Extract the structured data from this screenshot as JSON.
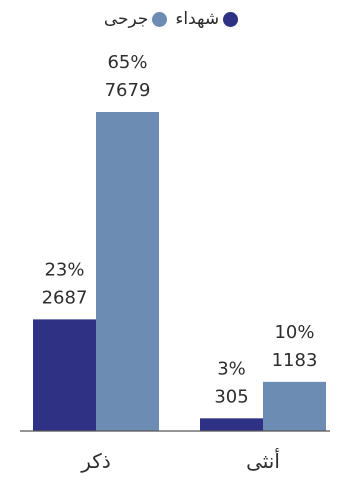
{
  "chart_data": {
    "type": "bar",
    "categories": [
      "ذكر",
      "أنثى"
    ],
    "series": [
      {
        "name": "شهداء",
        "values": [
          2687,
          305
        ],
        "percent_labels": [
          "23%",
          "3%"
        ],
        "value_labels": [
          "2687",
          "305"
        ],
        "color": "#2f3184"
      },
      {
        "name": "جرحى",
        "values": [
          7679,
          1183
        ],
        "percent_labels": [
          "65%",
          "10%"
        ],
        "value_labels": [
          "7679",
          "1183"
        ],
        "color": "#6c8cb4"
      }
    ],
    "title": "",
    "xlabel": "",
    "ylabel": "",
    "ylim": [
      0,
      7679
    ],
    "grid": false,
    "legend_position": "top-center"
  }
}
